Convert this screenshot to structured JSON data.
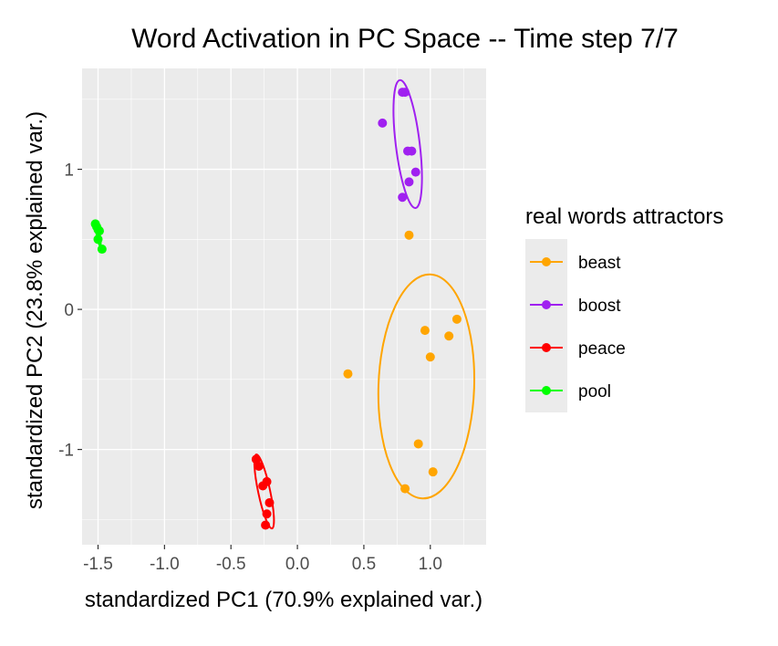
{
  "chart_data": {
    "type": "scatter",
    "title": "Word Activation in PC Space -- Time step 7/7",
    "xlabel": "standardized PC1 (70.9% explained var.)",
    "ylabel": "standardized PC2 (23.8% explained var.)",
    "xlim": [
      -1.62,
      1.42
    ],
    "ylim": [
      -1.68,
      1.72
    ],
    "x_ticks": [
      {
        "value": -1.5,
        "label": "-1.5"
      },
      {
        "value": -1.0,
        "label": "-1.0"
      },
      {
        "value": -0.5,
        "label": "-0.5"
      },
      {
        "value": 0.0,
        "label": "0.0"
      },
      {
        "value": 0.5,
        "label": "0.5"
      },
      {
        "value": 1.0,
        "label": "1.0"
      }
    ],
    "y_ticks": [
      {
        "value": -1,
        "label": "-1"
      },
      {
        "value": 0,
        "label": "0"
      },
      {
        "value": 1,
        "label": "1"
      }
    ],
    "grid": true,
    "legend": {
      "title": "real words attractors",
      "placement": "right"
    },
    "series": [
      {
        "name": "beast",
        "color": "#FFA500",
        "points": [
          {
            "x": 0.84,
            "y": 0.53
          },
          {
            "x": 1.2,
            "y": -0.07
          },
          {
            "x": 0.96,
            "y": -0.15
          },
          {
            "x": 1.14,
            "y": -0.19
          },
          {
            "x": 1.0,
            "y": -0.34
          },
          {
            "x": 0.38,
            "y": -0.46
          },
          {
            "x": 0.91,
            "y": -0.96
          },
          {
            "x": 1.02,
            "y": -1.16
          },
          {
            "x": 0.81,
            "y": -1.28
          }
        ],
        "ellipse": {
          "cx": 0.97,
          "cy": -0.55,
          "rx": 0.36,
          "ry": 0.8,
          "angle": 2
        }
      },
      {
        "name": "boost",
        "color": "#A020F0",
        "points": [
          {
            "x": 0.79,
            "y": 1.55
          },
          {
            "x": 0.81,
            "y": 1.55
          },
          {
            "x": 0.64,
            "y": 1.33
          },
          {
            "x": 0.83,
            "y": 1.13
          },
          {
            "x": 0.86,
            "y": 1.13
          },
          {
            "x": 0.89,
            "y": 0.98
          },
          {
            "x": 0.84,
            "y": 0.91
          },
          {
            "x": 0.79,
            "y": 0.8
          }
        ],
        "ellipse": {
          "cx": 0.83,
          "cy": 1.18,
          "rx": 0.09,
          "ry": 0.46,
          "angle": -7
        }
      },
      {
        "name": "peace",
        "color": "#FF0000",
        "points": [
          {
            "x": -0.31,
            "y": -1.07
          },
          {
            "x": -0.29,
            "y": -1.12
          },
          {
            "x": -0.23,
            "y": -1.23
          },
          {
            "x": -0.26,
            "y": -1.26
          },
          {
            "x": -0.21,
            "y": -1.38
          },
          {
            "x": -0.23,
            "y": -1.46
          },
          {
            "x": -0.24,
            "y": -1.54
          }
        ],
        "ellipse": {
          "cx": -0.25,
          "cy": -1.3,
          "rx": 0.045,
          "ry": 0.27,
          "angle": -12
        }
      },
      {
        "name": "pool",
        "color": "#00FF00",
        "points": [
          {
            "x": -1.52,
            "y": 0.61
          },
          {
            "x": -1.51,
            "y": 0.59
          },
          {
            "x": -1.5,
            "y": 0.57
          },
          {
            "x": -1.49,
            "y": 0.56
          },
          {
            "x": -1.5,
            "y": 0.5
          },
          {
            "x": -1.47,
            "y": 0.43
          }
        ],
        "ellipse": {
          "cx": -1.5,
          "cy": 0.54,
          "rx": 0.012,
          "ry": 0.09,
          "angle": -10
        }
      }
    ]
  }
}
